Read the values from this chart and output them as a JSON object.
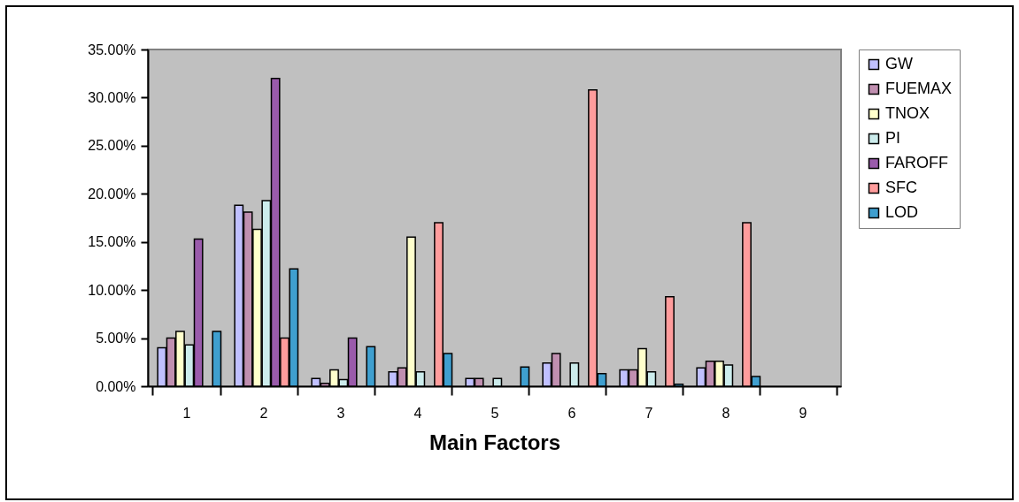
{
  "chart_data": {
    "type": "bar",
    "xlabel": "Main Factors",
    "categories": [
      "1",
      "2",
      "3",
      "4",
      "5",
      "6",
      "7",
      "8",
      "9"
    ],
    "series": [
      {
        "name": "GW",
        "color": "#c0c0ff",
        "values": [
          4.0,
          18.8,
          0.8,
          1.5,
          0.8,
          2.4,
          1.7,
          1.9,
          0
        ]
      },
      {
        "name": "FUEMAX",
        "color": "#c08fb0",
        "values": [
          5.0,
          18.1,
          0.3,
          1.9,
          0.8,
          3.4,
          1.7,
          2.6,
          0
        ]
      },
      {
        "name": "TNOX",
        "color": "#ffffcc",
        "values": [
          5.7,
          16.3,
          1.7,
          15.5,
          0,
          0,
          3.9,
          2.6,
          0
        ]
      },
      {
        "name": "PI",
        "color": "#ccecec",
        "values": [
          4.3,
          19.3,
          0.7,
          1.5,
          0.8,
          2.4,
          1.5,
          2.2,
          0
        ]
      },
      {
        "name": "FAROFF",
        "color": "#9a5bab",
        "values": [
          15.3,
          32.0,
          5.0,
          0,
          0,
          0,
          0,
          0,
          0
        ]
      },
      {
        "name": "SFC",
        "color": "#ff9c9c",
        "values": [
          0,
          5.0,
          0,
          17.0,
          0,
          30.8,
          9.3,
          17.0,
          0
        ]
      },
      {
        "name": "LOD",
        "color": "#3f9fcf",
        "values": [
          5.7,
          12.2,
          4.1,
          3.4,
          2.0,
          1.3,
          0.2,
          1.0,
          0
        ]
      }
    ],
    "ylim": [
      0,
      35
    ],
    "yticks": [
      {
        "value": 0,
        "label": "0.00%"
      },
      {
        "value": 5,
        "label": "5.00%"
      },
      {
        "value": 10,
        "label": "10.00%"
      },
      {
        "value": 15,
        "label": "15.00%"
      },
      {
        "value": 20,
        "label": "20.00%"
      },
      {
        "value": 25,
        "label": "25.00%"
      },
      {
        "value": 30,
        "label": "30.00%"
      },
      {
        "value": 35,
        "label": "35.00%"
      }
    ],
    "grid": false,
    "legend": "right"
  }
}
